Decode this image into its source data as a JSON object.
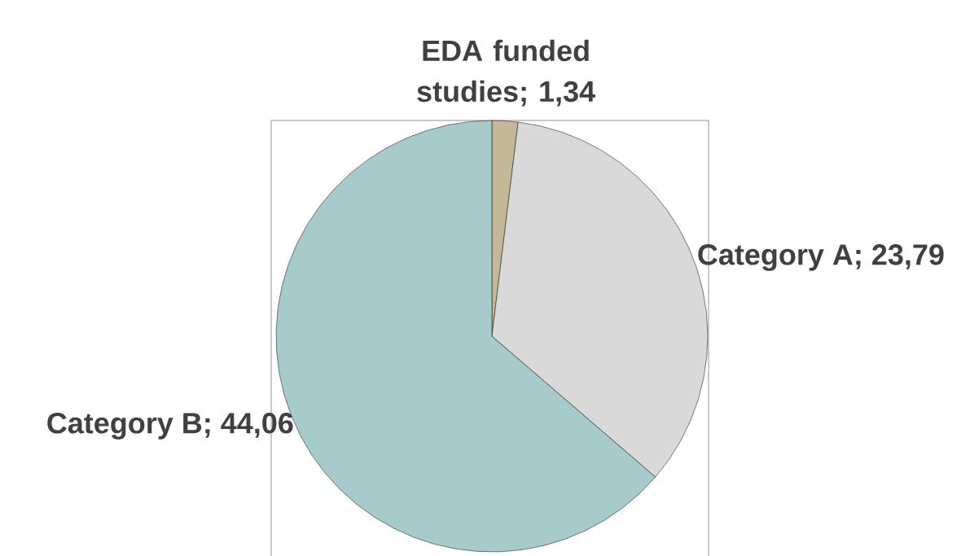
{
  "chart_data": {
    "type": "pie",
    "categories": [
      "EDA funded studies",
      "Category A",
      "Category B"
    ],
    "values": [
      1.34,
      23.79,
      44.06
    ],
    "value_labels": [
      "; 1,34",
      "; 23,79",
      "; 44,06"
    ],
    "colors": [
      "#c4b996",
      "#d9d9d9",
      "#a6cbca"
    ],
    "legend": false
  }
}
